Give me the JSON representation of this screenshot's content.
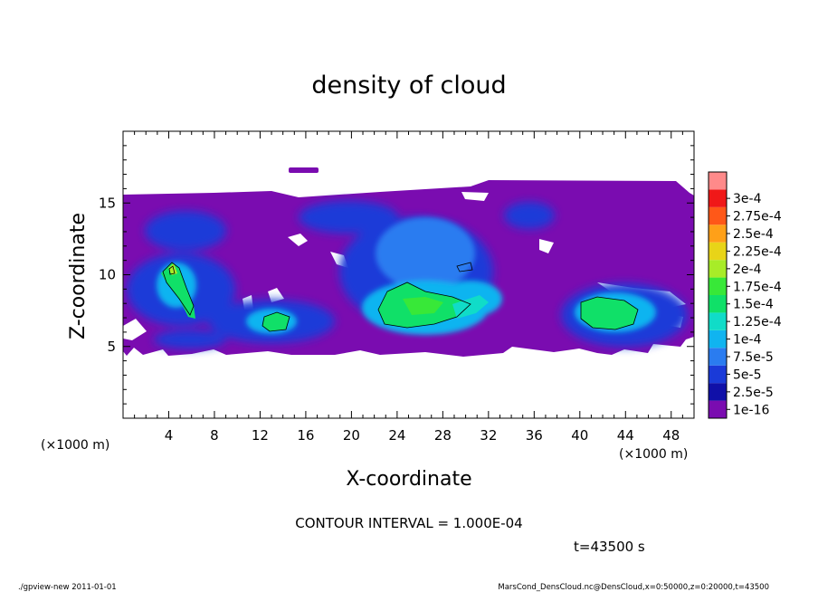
{
  "chart_data": {
    "type": "heatmap",
    "title": "density of cloud",
    "xlabel": "X-coordinate",
    "ylabel": "Z-coordinate",
    "x_unit": "(×1000 m)",
    "y_unit": "(×1000 m)",
    "xlim": [
      0,
      50
    ],
    "ylim": [
      0,
      20
    ],
    "x_ticks": [
      4,
      8,
      12,
      16,
      20,
      24,
      28,
      32,
      36,
      40,
      44,
      48
    ],
    "y_ticks": [
      5,
      10,
      15
    ],
    "contour_interval_label": "CONTOUR INTERVAL = 1.000E-04",
    "time_label": "t=43500 s",
    "colorbar": {
      "labels": [
        "1e-16",
        "2.5e-5",
        "5e-5",
        "7.5e-5",
        "1e-4",
        "1.25e-4",
        "1.5e-4",
        "1.75e-4",
        "2e-4",
        "2.25e-4",
        "2.5e-4",
        "2.75e-4",
        "3e-4"
      ],
      "colors": [
        "#7a0cb0",
        "#1010a8",
        "#1a3ad8",
        "#2a7cf0",
        "#10b4f0",
        "#10dcc8",
        "#10e068",
        "#38e838",
        "#a8ec28",
        "#e8d418",
        "#ffa018",
        "#ff5818",
        "#f01818",
        "#ff8a8a"
      ]
    },
    "cloud_regions": [
      {
        "name": "main cloud layer",
        "x_range": [
          0,
          50
        ],
        "z_range": [
          4.5,
          16
        ],
        "level": "1e-16"
      },
      {
        "name": "cell near x=5",
        "x_center": 5,
        "z_center": 9,
        "level": "1.5e-4"
      },
      {
        "name": "cell near x=24",
        "x_center": 25,
        "z_center": 7.7,
        "level": "1.5e-4"
      },
      {
        "name": "cell near x=42",
        "x_center": 42,
        "z_center": 7.5,
        "level": "1.25e-4"
      },
      {
        "name": "cell near x=14",
        "x_center": 13.7,
        "z_center": 6.8,
        "level": "1e-4"
      }
    ]
  },
  "footer": {
    "left": "./gpview-new  2011-01-01",
    "right": "MarsCond_DensCloud.nc@DensCloud,x=0:50000,z=0:20000,t=43500"
  }
}
